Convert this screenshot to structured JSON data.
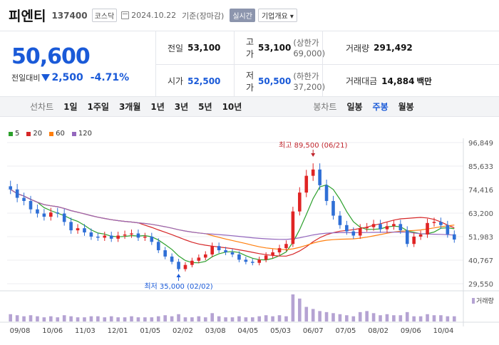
{
  "header": {
    "name": "피엔티",
    "code": "137400",
    "market": "코스닥",
    "date": "2024.10.22",
    "basis": "기준(장마감)",
    "realtime": "실시간",
    "overview": "기업개요 ▾"
  },
  "price": {
    "current": "50,600",
    "prev_label": "전일대비",
    "change": "2,500",
    "change_pct": "-4.71%"
  },
  "stats": {
    "prev_close_label": "전일",
    "prev_close": "53,100",
    "high_label": "고가",
    "high": "53,100",
    "high_sub": "(상한가 69,000)",
    "volume_label": "거래량",
    "volume": "291,492",
    "open_label": "시가",
    "open": "52,500",
    "low_label": "저가",
    "low": "50,500",
    "low_sub": "(하한가 37,200)",
    "amount_label": "거래대금",
    "amount": "14,884",
    "amount_unit": "백만"
  },
  "toolbar": {
    "line_label": "선차트",
    "line_periods": [
      "1일",
      "1주일",
      "3개월",
      "1년",
      "3년",
      "5년",
      "10년"
    ],
    "candle_label": "봉차트",
    "candle_periods": [
      "일봉",
      "주봉",
      "월봉"
    ],
    "active": "주봉"
  },
  "chart_data": {
    "type": "candlestick",
    "legend": [
      {
        "name": "5",
        "color": "#2ca02c"
      },
      {
        "name": "20",
        "color": "#d62728"
      },
      {
        "name": "60",
        "color": "#ff7f0e"
      },
      {
        "name": "120",
        "color": "#9467bd"
      }
    ],
    "y_ticks": [
      "96,849",
      "85,633",
      "74,416",
      "63,200",
      "51,983",
      "40,767",
      "29,550"
    ],
    "ylim": [
      29550,
      96849
    ],
    "x_ticks": [
      "09/08",
      "10/06",
      "11/03",
      "12/01",
      "01/05",
      "02/02",
      "03/08",
      "04/05",
      "05/03",
      "06/07",
      "07/05",
      "08/02",
      "09/06",
      "10/04"
    ],
    "annotation_high": "최고 89,500 (06/21)",
    "annotation_low": "최저 35,000 (02/02)",
    "volume_label": "거래량",
    "colors": {
      "up": "#e02424",
      "down": "#2f6fd6"
    },
    "closes": [
      74500,
      70500,
      69000,
      65000,
      63000,
      61500,
      63500,
      63000,
      59000,
      55000,
      56000,
      54000,
      52000,
      51500,
      52500,
      51000,
      52500,
      53000,
      53500,
      51500,
      52000,
      49500,
      45500,
      42500,
      40000,
      36500,
      38500,
      40500,
      42000,
      43500,
      47500,
      45500,
      44500,
      43500,
      41000,
      40000,
      39500,
      41000,
      43000,
      44500,
      46500,
      48500,
      64000,
      73000,
      81000,
      84000,
      76500,
      69000,
      62000,
      57500,
      54500,
      52500,
      56000,
      56500,
      58000,
      55500,
      57000,
      58000,
      55000,
      48500,
      52000,
      53000,
      58500,
      59000,
      57500,
      53100,
      50600
    ],
    "volumes": [
      7,
      6,
      5,
      6,
      5,
      4,
      5,
      4,
      6,
      5,
      4,
      4,
      5,
      5,
      4,
      5,
      4,
      4,
      5,
      4,
      4,
      4,
      5,
      6,
      5,
      7,
      4,
      4,
      5,
      4,
      8,
      5,
      4,
      4,
      5,
      4,
      4,
      5,
      6,
      5,
      6,
      5,
      26,
      22,
      14,
      12,
      10,
      9,
      8,
      7,
      6,
      5,
      9,
      10,
      8,
      6,
      7,
      6,
      6,
      9,
      5,
      5,
      7,
      6,
      6,
      5,
      5
    ]
  }
}
